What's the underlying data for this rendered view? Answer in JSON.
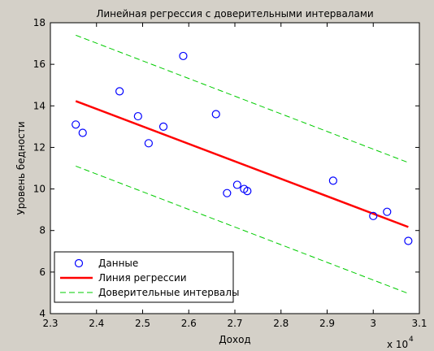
{
  "chart_data": {
    "type": "scatter",
    "title": "Линейная регрессия с доверительными интервалами",
    "xlabel": "Доход",
    "ylabel": "Уровень бедности",
    "x_multiplier_label": "x 10",
    "x_multiplier_exponent": "4",
    "xlim": [
      2.3,
      3.1
    ],
    "ylim": [
      4,
      18
    ],
    "x_ticks": [
      2.3,
      2.4,
      2.5,
      2.6,
      2.7,
      2.8,
      2.9,
      3.0,
      3.1
    ],
    "x_tick_labels": [
      "2.3",
      "2.4",
      "2.5",
      "2.6",
      "2.7",
      "2.8",
      "2.9",
      "3",
      "3.1"
    ],
    "y_ticks": [
      4,
      6,
      8,
      10,
      12,
      14,
      16,
      18
    ],
    "y_tick_labels": [
      "4",
      "6",
      "8",
      "10",
      "12",
      "14",
      "16",
      "18"
    ],
    "grid": false,
    "legend_position": "bottom-left",
    "series": [
      {
        "name": "Данные",
        "kind": "markers",
        "color": "#0000ff",
        "x": [
          2.355,
          2.37,
          2.45,
          2.49,
          2.513,
          2.545,
          2.588,
          2.659,
          2.683,
          2.705,
          2.72,
          2.727,
          2.913,
          3.0,
          3.03,
          3.076
        ],
        "y": [
          13.1,
          12.7,
          14.7,
          13.5,
          12.2,
          13.0,
          16.4,
          13.6,
          9.8,
          10.2,
          10.0,
          9.9,
          10.4,
          8.7,
          8.9,
          7.5
        ]
      },
      {
        "name": "Линия регрессии",
        "kind": "line",
        "color": "#ff0000",
        "x": [
          2.355,
          3.076
        ],
        "y": [
          14.23,
          8.17
        ]
      },
      {
        "name": "Доверительные интервалы",
        "kind": "dashed",
        "color": "#00cc00",
        "x": [
          2.355,
          3.076
        ],
        "y": [
          17.4,
          11.27
        ]
      },
      {
        "name": "",
        "kind": "dashed",
        "color": "#00cc00",
        "x": [
          2.355,
          3.076
        ],
        "y": [
          11.1,
          4.97
        ]
      }
    ]
  }
}
